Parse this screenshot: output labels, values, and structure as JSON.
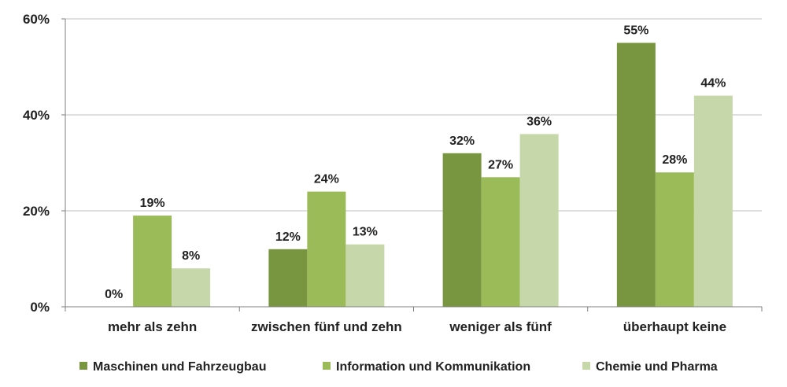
{
  "chart_data": {
    "type": "bar",
    "categories": [
      "mehr als zehn",
      "zwischen fünf und zehn",
      "weniger als fünf",
      "überhaupt keine"
    ],
    "series": [
      {
        "name": "Maschinen und Fahrzeugbau",
        "color": "#77963f",
        "values": [
          0,
          12,
          32,
          55
        ],
        "labels": [
          "0%",
          "12%",
          "32%",
          "55%"
        ]
      },
      {
        "name": "Information und Kommunikation",
        "color": "#9bbb59",
        "values": [
          19,
          24,
          27,
          28
        ],
        "labels": [
          "19%",
          "24%",
          "27%",
          "28%"
        ]
      },
      {
        "name": "Chemie und Pharma",
        "color": "#c6d8a9",
        "values": [
          8,
          13,
          36,
          44
        ],
        "labels": [
          "8%",
          "13%",
          "36%",
          "44%"
        ]
      }
    ],
    "yticks": [
      {
        "value": 0,
        "label": "0%"
      },
      {
        "value": 20,
        "label": "20%"
      },
      {
        "value": 40,
        "label": "40%"
      },
      {
        "value": 60,
        "label": "60%"
      }
    ],
    "ylim": [
      0,
      60
    ],
    "grid": true,
    "legend": "bottom",
    "title": "",
    "xlabel": "",
    "ylabel": ""
  }
}
